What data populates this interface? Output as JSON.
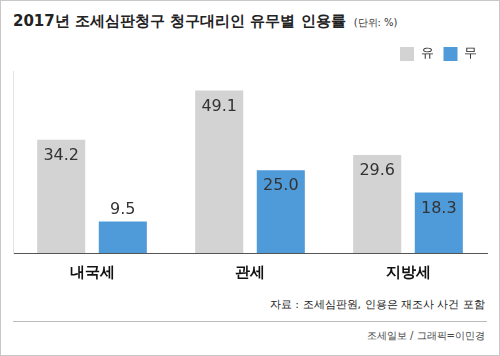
{
  "chart_data": {
    "type": "bar",
    "title": "2017년 조세심판청구 청구대리인 유무별 인용률",
    "subtitle": "(단위: %)",
    "categories": [
      "내국세",
      "관세",
      "지방세"
    ],
    "series": [
      {
        "name": "유",
        "color": "#d3d3d3",
        "values": [
          34.2,
          49.1,
          29.6
        ],
        "value_labels": [
          "34.2",
          "49.1",
          "29.6"
        ]
      },
      {
        "name": "무",
        "color": "#4f9bd9",
        "values": [
          9.5,
          25,
          18.3
        ],
        "value_labels": [
          "9.5",
          "25.0",
          "18.3"
        ]
      }
    ],
    "ylim": [
      0,
      55
    ],
    "grid": false,
    "legend": "top-right",
    "data_labels": true,
    "tick_labels": "x",
    "annotations": [
      "자료 : 조세심판원, 인용은 재조사 사건 포함",
      "조세일보 / 그래픽=이민경"
    ]
  }
}
